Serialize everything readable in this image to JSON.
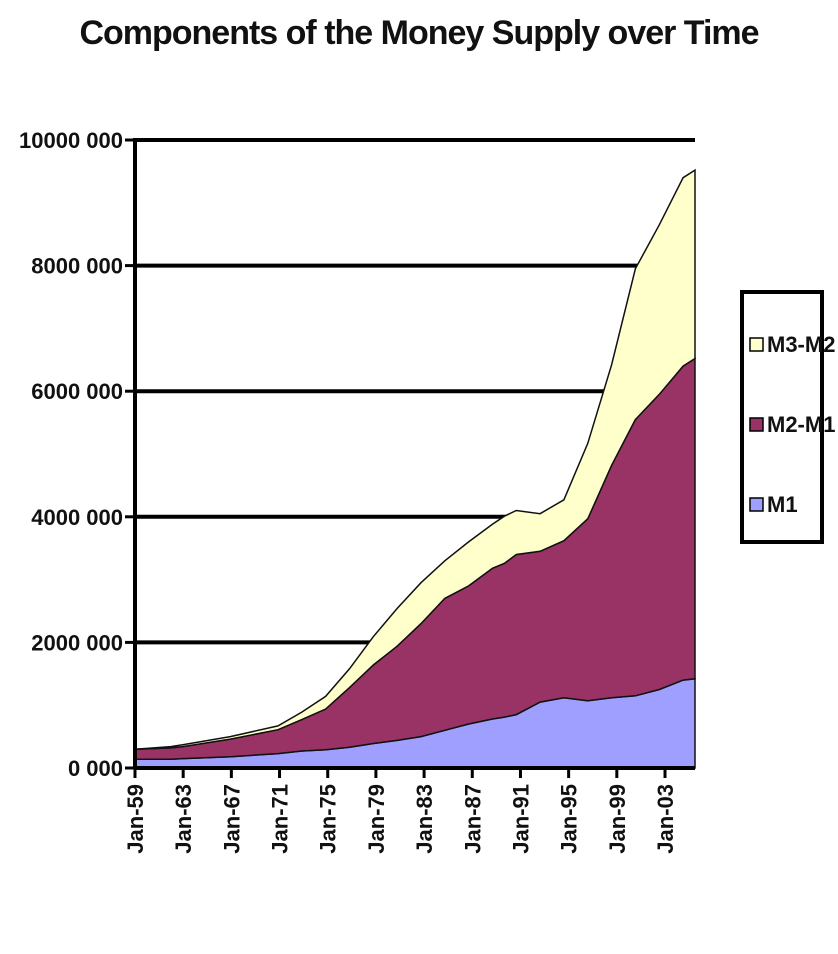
{
  "colors": {
    "M1": "#9f9fff",
    "M2-M1": "#993366",
    "M3-M2": "#ffffcc",
    "grid": "#000000"
  },
  "chart_data": {
    "type": "area",
    "stacked": true,
    "title": "Components of the Money Supply over Time",
    "ylim": [
      0,
      10000000
    ],
    "yticks": [
      0,
      2000000,
      4000000,
      6000000,
      8000000,
      10000000
    ],
    "ytick_labels": [
      "0 000",
      "2000 000",
      "4000 000",
      "6000 000",
      "8000 000",
      "10000 000"
    ],
    "xtick_labels": [
      "Jan-59",
      "Jan-63",
      "Jan-67",
      "Jan-71",
      "Jan-75",
      "Jan-79",
      "Jan-83",
      "Jan-87",
      "Jan-91",
      "Jan-95",
      "Jan-99",
      "Jan-03"
    ],
    "x": [
      1959,
      1962,
      1963,
      1967,
      1971,
      1973,
      1975,
      1977,
      1979,
      1981,
      1983,
      1985,
      1987,
      1989,
      1990,
      1991,
      1993,
      1995,
      1997,
      1999,
      2001,
      2003,
      2005,
      2006
    ],
    "series": [
      {
        "name": "M1",
        "values": [
          140000,
          140000,
          150000,
          180000,
          230000,
          270000,
          290000,
          330000,
          390000,
          440000,
          500000,
          600000,
          700000,
          780000,
          810000,
          850000,
          1050000,
          1120000,
          1070000,
          1120000,
          1150000,
          1250000,
          1400000,
          1420000
        ]
      },
      {
        "name": "M2-M1",
        "values": [
          160000,
          180000,
          190000,
          280000,
          380000,
          500000,
          650000,
          950000,
          1250000,
          1500000,
          1800000,
          2100000,
          2200000,
          2400000,
          2450000,
          2550000,
          2400000,
          2500000,
          2900000,
          3700000,
          4400000,
          4700000,
          5000000,
          5100000
        ]
      },
      {
        "name": "M3-M2",
        "values": [
          0,
          20000,
          30000,
          40000,
          60000,
          120000,
          200000,
          300000,
          450000,
          600000,
          650000,
          600000,
          700000,
          700000,
          750000,
          700000,
          600000,
          650000,
          1200000,
          1600000,
          2400000,
          2700000,
          3000000,
          3000000
        ]
      }
    ],
    "legend": {
      "position": "right",
      "order": [
        "M3-M2",
        "M2-M1",
        "M1"
      ]
    },
    "grid": "horizontal"
  }
}
